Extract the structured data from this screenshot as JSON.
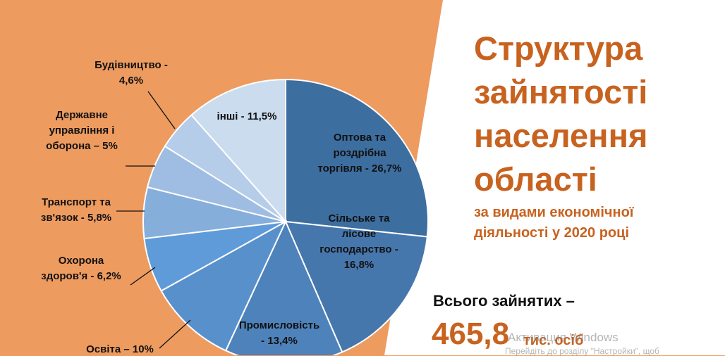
{
  "title_lines": [
    "Структура",
    "зайнятості",
    "населення",
    "області"
  ],
  "subtitle_lines": [
    "за видами економічної",
    "діяльності у 2020 році"
  ],
  "total": {
    "label": "Всього зайнятих –",
    "value": "465,8",
    "unit": "тис. осіб"
  },
  "watermark": {
    "title": "Активация Windows",
    "subtitle": "Перейдіть до розділу \"Настройки\", щоб"
  },
  "colors": {
    "background": "#ee9b60",
    "panel": "#ffffff",
    "accent": "#c8621f"
  },
  "chart_data": {
    "type": "pie",
    "slices": [
      {
        "label_lines": [
          "Оптова та",
          "роздрібна",
          "торгівля - 26,7%"
        ],
        "value": 26.7,
        "color": "#3d6ea0"
      },
      {
        "label_lines": [
          "Сільське та",
          "лісове",
          "господарство -",
          "16,8%"
        ],
        "value": 16.8,
        "color": "#4677ac"
      },
      {
        "label_lines": [
          "Промисловість",
          "- 13,4%"
        ],
        "value": 13.4,
        "color": "#4e82bb"
      },
      {
        "label_lines": [
          "Освіта – 10%"
        ],
        "value": 10.0,
        "color": "#5890cc"
      },
      {
        "label_lines": [
          "Охорона",
          "здоров'я - 6,2%"
        ],
        "value": 6.2,
        "color": "#5f9bd8"
      },
      {
        "label_lines": [
          "Транспорт та",
          "зв'язок - 5,8%"
        ],
        "value": 5.8,
        "color": "#85aedb"
      },
      {
        "label_lines": [
          "Державне",
          "управління і",
          "оборона – 5%"
        ],
        "value": 5.0,
        "color": "#9fbde2"
      },
      {
        "label_lines": [
          "Будівництво -",
          "4,6%"
        ],
        "value": 4.6,
        "color": "#b6cde9"
      },
      {
        "label_lines": [
          "інші - 11,5%"
        ],
        "value": 11.5,
        "color": "#ccdcef"
      }
    ]
  }
}
